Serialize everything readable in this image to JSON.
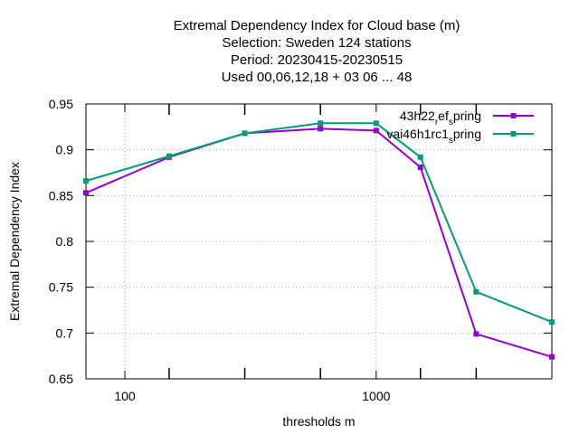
{
  "chart_data": {
    "type": "line",
    "title_lines": [
      "Extremal Dependency Index  for Cloud base (m)",
      "Selection: Sweden    124 stations",
      "Period: 20230415-20230515",
      "Used  00,06,12,18  + 03 06 ... 48"
    ],
    "xlabel": "thresholds m",
    "ylabel": "Extremal Dependency Index",
    "x_scale": "log",
    "xlim": [
      70,
      5000
    ],
    "ylim": [
      0.65,
      0.95
    ],
    "grid": true,
    "legend_position": "top-right",
    "x_tick_labels": [
      "100",
      "1000"
    ],
    "y_ticks": [
      0.65,
      0.7,
      0.75,
      0.8,
      0.85,
      0.9,
      0.95
    ],
    "y_tick_labels": [
      "0.65",
      "0.7",
      "0.75",
      "0.8",
      "0.85",
      "0.9",
      "0.95"
    ],
    "x": [
      70,
      150,
      300,
      600,
      1000,
      1500,
      2500,
      5000
    ],
    "series": [
      {
        "name": "43h22_ref_spring",
        "legend_parts": [
          "43h22",
          "r",
          "ef",
          "s",
          "pring"
        ],
        "color": "#9400d3",
        "values": [
          0.853,
          0.892,
          0.918,
          0.923,
          0.921,
          0.881,
          0.699,
          0.674
        ]
      },
      {
        "name": "vai46h1rc1_spring",
        "legend_parts": [
          "vai46h1rc1",
          "s",
          "pring"
        ],
        "color": "#009e73",
        "values": [
          0.866,
          0.893,
          0.918,
          0.929,
          0.929,
          0.892,
          0.745,
          0.712
        ]
      }
    ]
  }
}
